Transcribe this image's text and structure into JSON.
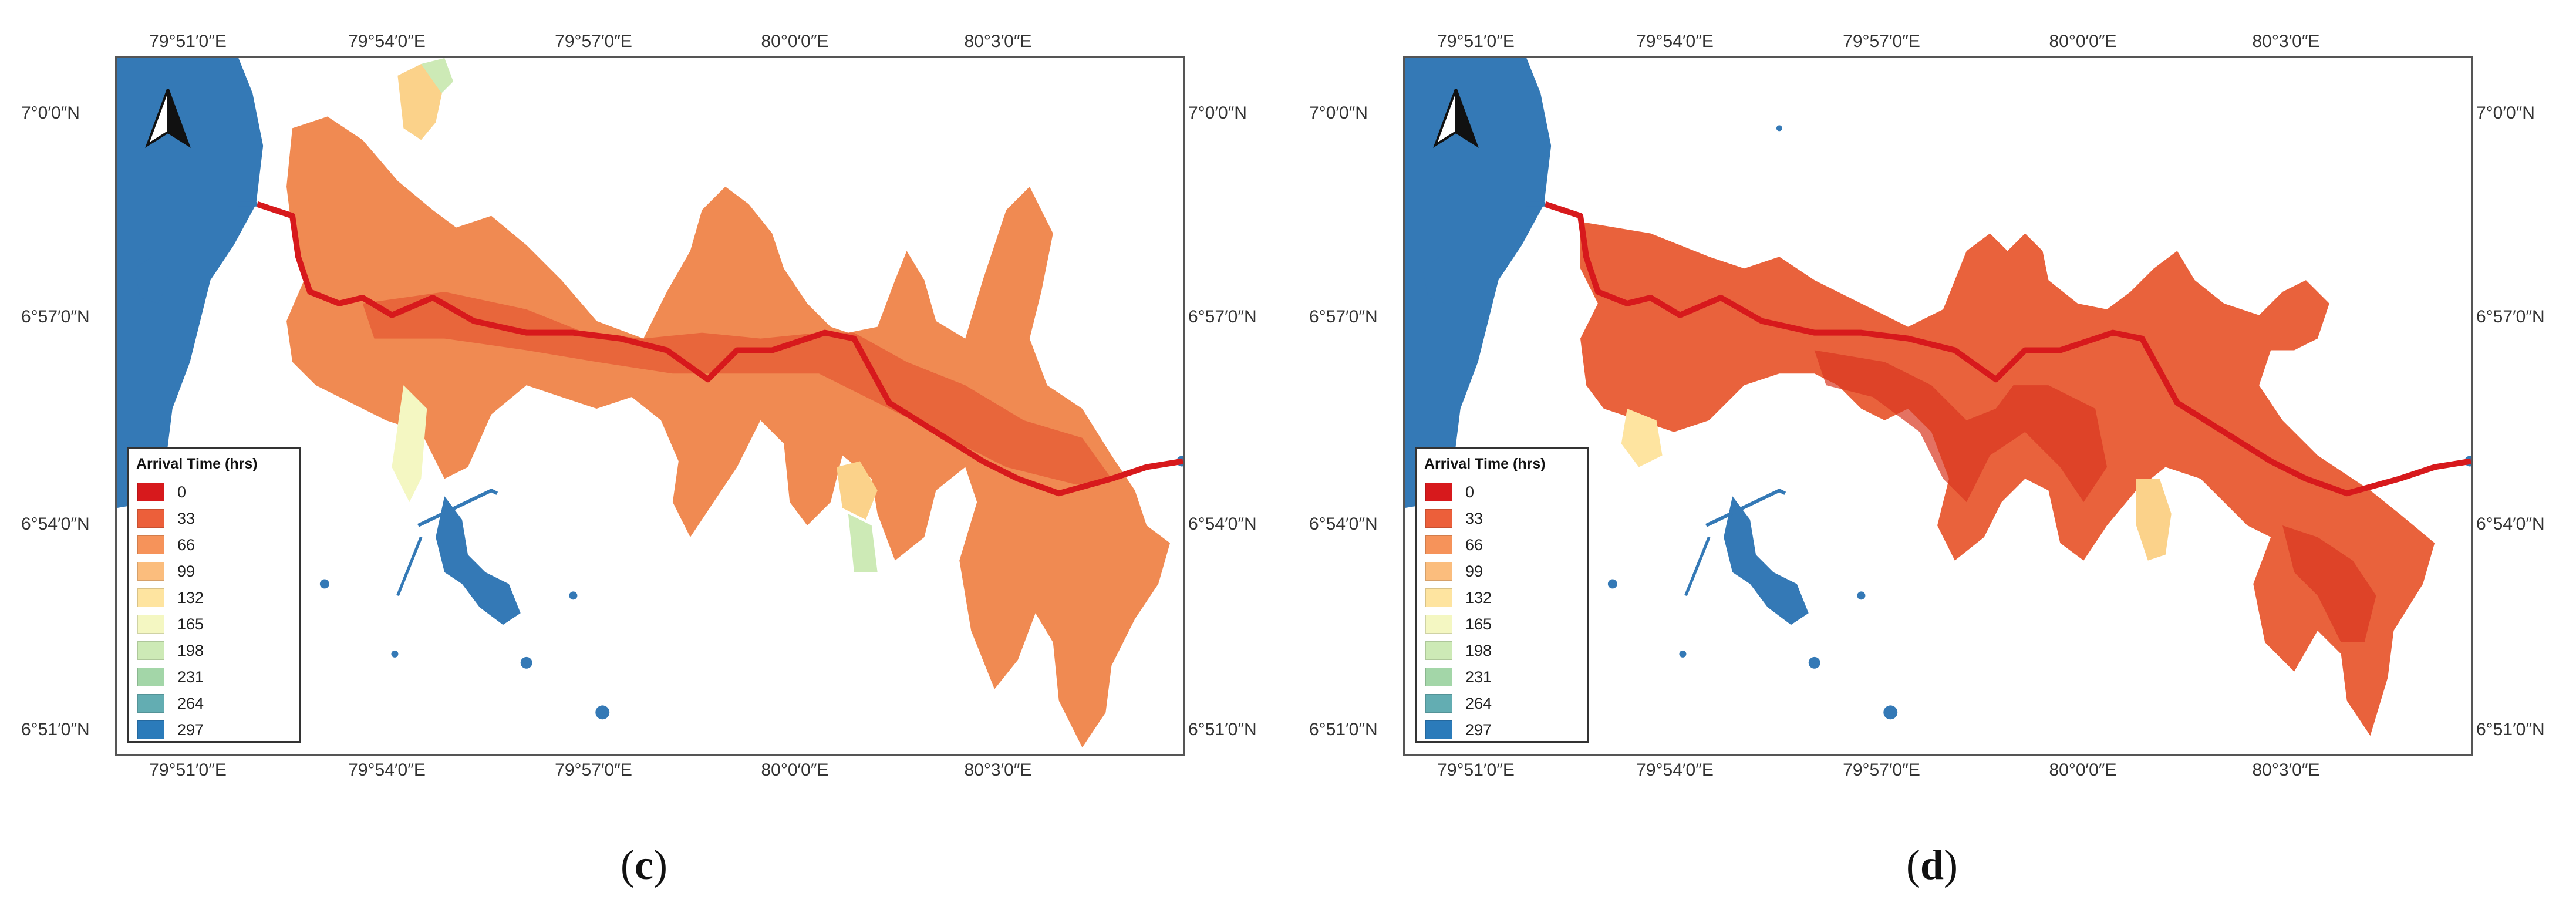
{
  "panels": [
    {
      "caption": "c",
      "lon_labels": [
        "79°51′0″E",
        "79°54′0″E",
        "79°57′0″E",
        "80°0′0″E",
        "80°3′0″E"
      ],
      "lat_labels": [
        "7°0′0″N",
        "6°57′0″N",
        "6°54′0″N",
        "6°51′0″N"
      ],
      "legend": {
        "title": "Arrival Time (hrs)",
        "entries": [
          {
            "label": "0",
            "color": "#d7191c"
          },
          {
            "label": "33",
            "color": "#ec5f3a"
          },
          {
            "label": "66",
            "color": "#f6935a"
          },
          {
            "label": "99",
            "color": "#fbbd7d"
          },
          {
            "label": "132",
            "color": "#fee4a0"
          },
          {
            "label": "165",
            "color": "#f4f7c2"
          },
          {
            "label": "198",
            "color": "#cdeab6"
          },
          {
            "label": "231",
            "color": "#a3d6a8"
          },
          {
            "label": "264",
            "color": "#63adb2"
          },
          {
            "label": "297",
            "color": "#2b7bba"
          }
        ]
      }
    },
    {
      "caption": "d",
      "lon_labels": [
        "79°51′0″E",
        "79°54′0″E",
        "79°57′0″E",
        "80°0′0″E",
        "80°3′0″E"
      ],
      "lat_labels": [
        "7°0′0″N",
        "6°57′0″N",
        "6°54′0″N",
        "6°51′0″N"
      ],
      "legend": {
        "title": "Arrival Time (hrs)",
        "entries": [
          {
            "label": "0",
            "color": "#d7191c"
          },
          {
            "label": "33",
            "color": "#ec5f3a"
          },
          {
            "label": "66",
            "color": "#f6935a"
          },
          {
            "label": "99",
            "color": "#fbbd7d"
          },
          {
            "label": "132",
            "color": "#fee4a0"
          },
          {
            "label": "165",
            "color": "#f4f7c2"
          },
          {
            "label": "198",
            "color": "#cdeab6"
          },
          {
            "label": "231",
            "color": "#a3d6a8"
          },
          {
            "label": "264",
            "color": "#63adb2"
          },
          {
            "label": "297",
            "color": "#2b7bba"
          }
        ]
      }
    }
  ],
  "colors": {
    "sea": "#3479b6",
    "river": "#d7191c",
    "flood_c": "#f08a52",
    "flood_d": "#e9623c"
  }
}
